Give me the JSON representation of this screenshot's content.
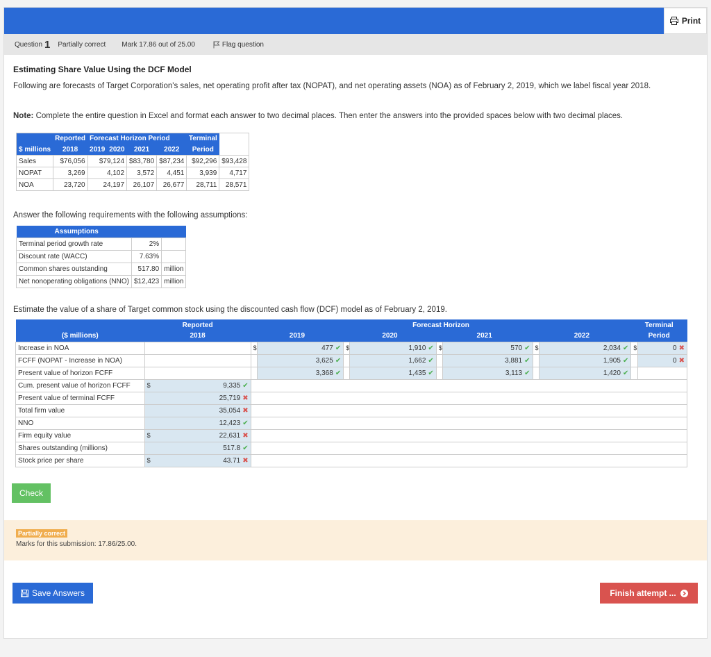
{
  "toolbar": {
    "print_label": "Print"
  },
  "question": {
    "label": "Question",
    "number": "1",
    "status": "Partially correct",
    "mark": "Mark 17.86 out of 25.00",
    "flag_label": "Flag question"
  },
  "content": {
    "title": "Estimating Share Value Using the DCF Model",
    "intro": "Following are forecasts of Target Corporation's sales, net operating profit after tax (NOPAT), and net operating assets (NOA) as of February 2, 2019, which we label fiscal year 2018.",
    "note_label": "Note:",
    "note_text": " Complete the entire question in Excel and format each answer to two decimal places. Then enter the answers into the provided spaces below with two decimal places.",
    "assumptions_intro": "Answer the following requirements with the following assumptions:",
    "estimate_intro": "Estimate the value of a share of Target common stock using the discounted cash flow (DCF) model as of February 2, 2019."
  },
  "forecast_table": {
    "h1": [
      "",
      "Reported",
      "Forecast Horizon Period",
      "",
      "",
      "",
      "Terminal"
    ],
    "h2": [
      "$ millions",
      "2018",
      "2019",
      "2020",
      "2021",
      "2022",
      "Period"
    ],
    "rows": [
      {
        "label": "Sales",
        "cells": [
          "$76,056",
          "$79,124",
          "$83,780",
          "$87,234",
          "$92,296",
          "$93,428"
        ]
      },
      {
        "label": "NOPAT",
        "cells": [
          "3,269",
          "4,102",
          "3,572",
          "4,451",
          "3,939",
          "4,717"
        ]
      },
      {
        "label": "NOA",
        "cells": [
          "23,720",
          "24,197",
          "26,107",
          "26,677",
          "28,711",
          "28,571"
        ]
      }
    ]
  },
  "assumptions": {
    "header": "Assumptions",
    "rows": [
      {
        "label": "Terminal period growth rate",
        "value": "2%",
        "unit": ""
      },
      {
        "label": "Discount rate (WACC)",
        "value": "7.63%",
        "unit": ""
      },
      {
        "label": "Common shares outstanding",
        "value": "517.80",
        "unit": "million"
      },
      {
        "label": "Net nonoperating obligations (NNO)",
        "value": "$12,423",
        "unit": "million"
      }
    ]
  },
  "dcf_table": {
    "h1": {
      "reported": "Reported",
      "forecast": "Forecast Horizon",
      "terminal": "Terminal"
    },
    "h2": {
      "label": "($ millions)",
      "y2018": "2018",
      "y2019": "2019",
      "y2020": "2020",
      "y2021": "2021",
      "y2022": "2022",
      "terminal": "Period"
    },
    "currency": "$",
    "forecast_rows": [
      {
        "label": "Increase in NOA",
        "values": [
          "477",
          "1,910",
          "570",
          "2,034",
          "0"
        ],
        "status": [
          "ok",
          "ok",
          "ok",
          "ok",
          "bad"
        ]
      },
      {
        "label": "FCFF (NOPAT - Increase in NOA)",
        "values": [
          "3,625",
          "1,662",
          "3,881",
          "1,905",
          "0"
        ],
        "status": [
          "ok",
          "ok",
          "ok",
          "ok",
          "bad"
        ]
      },
      {
        "label": "Present value of horizon FCFF",
        "values": [
          "3,368",
          "1,435",
          "3,113",
          "1,420"
        ],
        "status": [
          "ok",
          "ok",
          "ok",
          "ok"
        ]
      }
    ],
    "summary_rows": [
      {
        "label": "Cum. present value of horizon FCFF",
        "cur": "$",
        "value": "9,335",
        "status": "ok"
      },
      {
        "label": "Present value of terminal FCFF",
        "cur": "",
        "value": "25,719",
        "status": "bad"
      },
      {
        "label": "Total firm value",
        "cur": "",
        "value": "35,054",
        "status": "bad"
      },
      {
        "label": "NNO",
        "cur": "",
        "value": "12,423",
        "status": "ok"
      },
      {
        "label": "Firm equity value",
        "cur": "$",
        "value": "22,631",
        "status": "bad"
      },
      {
        "label": "Shares outstanding (millions)",
        "cur": "",
        "value": "517.8",
        "status": "ok"
      },
      {
        "label": "Stock price per share",
        "cur": "$",
        "value": "43.71",
        "status": "bad"
      }
    ]
  },
  "actions": {
    "check_label": "Check",
    "save_label": "Save Answers",
    "finish_label": "Finish attempt ..."
  },
  "feedback": {
    "badge": "Partially correct",
    "marks_text": "Marks for this submission: 17.86/25.00."
  },
  "colors": {
    "accent": "#2a6ad6",
    "correct": "#4caf50",
    "incorrect": "#d9534f",
    "input_bg": "#d9e7f1"
  }
}
